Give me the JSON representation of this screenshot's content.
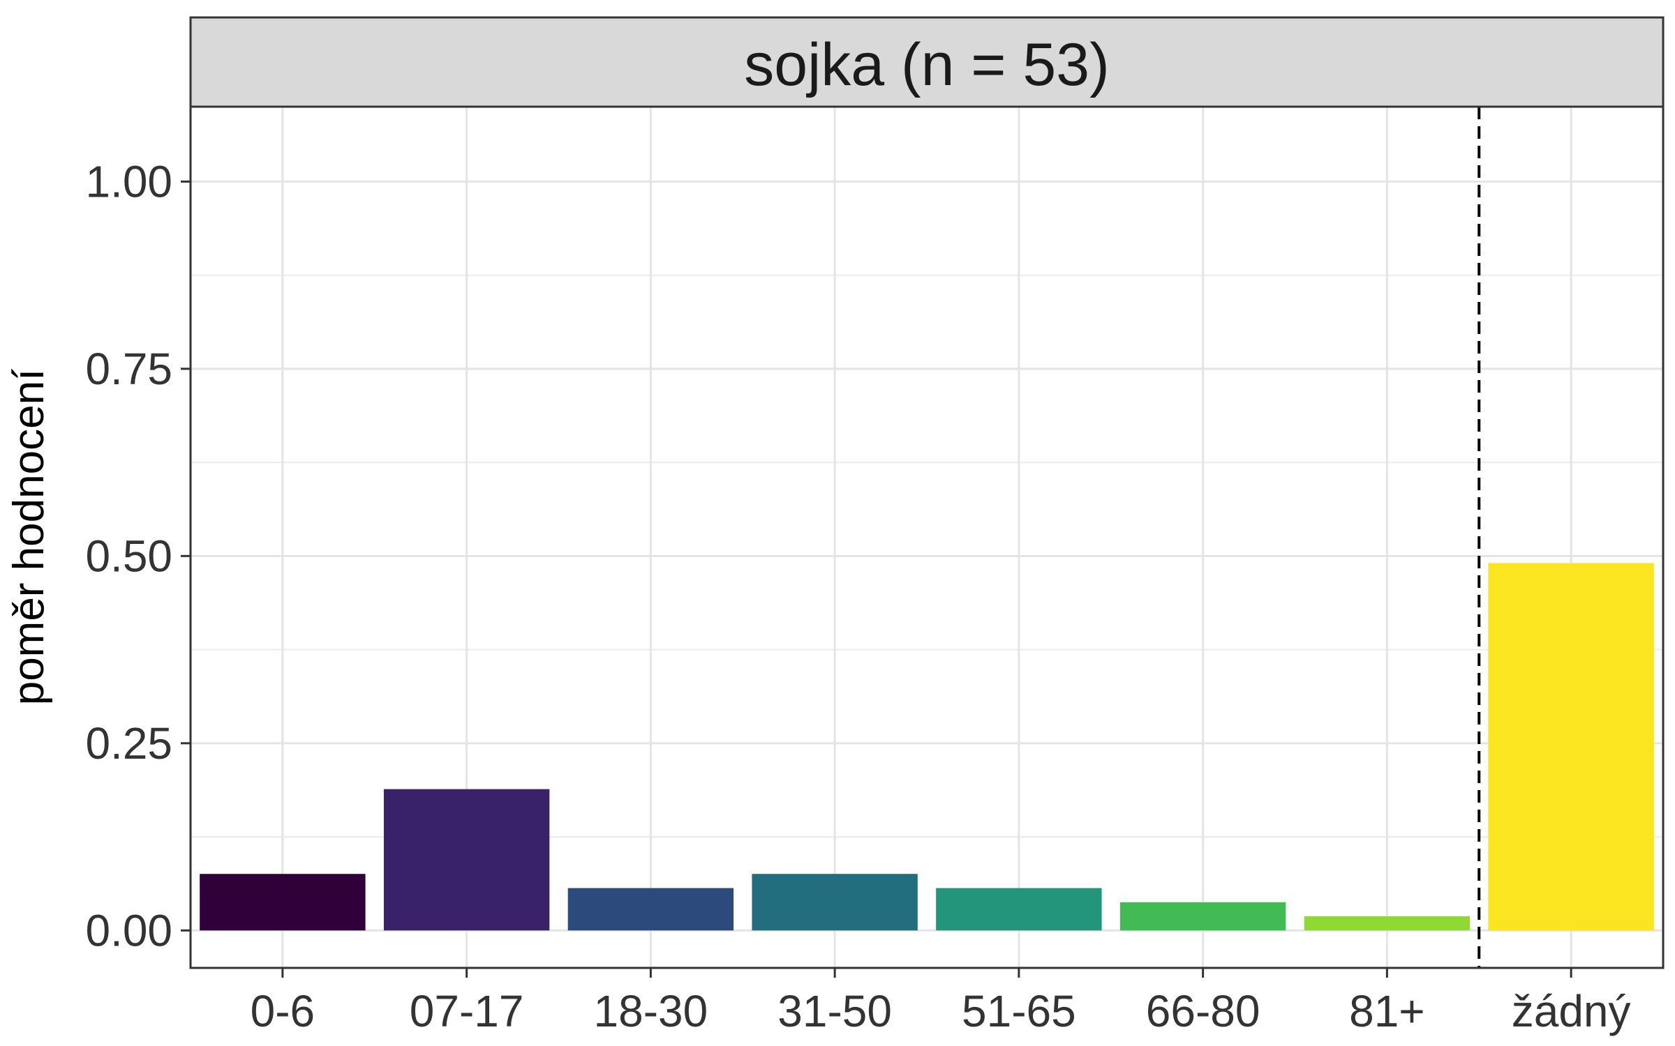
{
  "chart_data": {
    "type": "bar",
    "title": "sojka (n = 53)",
    "xlabel": "",
    "ylabel": "poměr hodnocení",
    "categories": [
      "0-6",
      "07-17",
      "18-30",
      "31-50",
      "51-65",
      "66-80",
      "81+",
      "žádný"
    ],
    "values": [
      0.0755,
      0.1887,
      0.0566,
      0.0755,
      0.0566,
      0.0377,
      0.0189,
      0.4906
    ],
    "colors": [
      "#30003a",
      "#3a2268",
      "#2c4a7c",
      "#236e7e",
      "#22957a",
      "#42bb55",
      "#90d833",
      "#fbe420"
    ],
    "ylim": [
      -0.05,
      1.1
    ],
    "yticks": [
      0,
      0.25,
      0.5,
      0.75,
      1
    ],
    "ytick_labels": [
      "0.00",
      "0.25",
      "0.50",
      "0.75",
      "1.00"
    ],
    "grid": true,
    "reference_line": {
      "type": "vertical",
      "style": "dashed",
      "between": [
        "81+",
        "žádný"
      ]
    }
  }
}
